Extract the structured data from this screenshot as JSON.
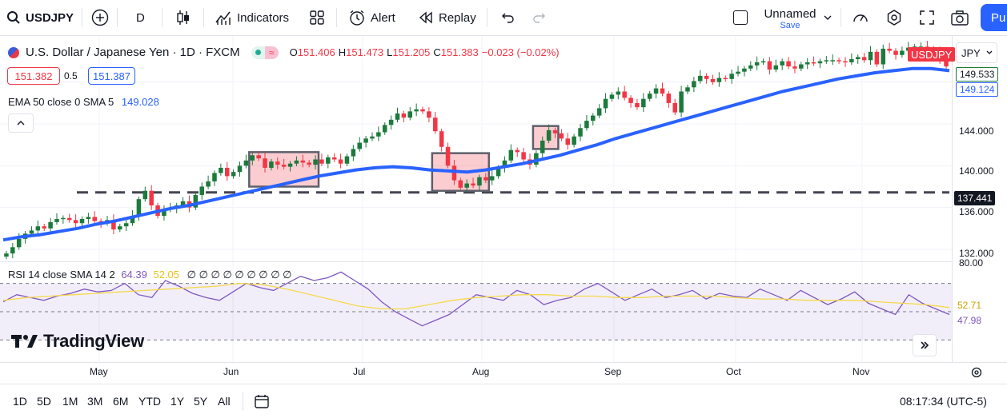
{
  "toolbar": {
    "symbol": "USDJPY",
    "interval": "D",
    "indicators_label": "Indicators",
    "alert_label": "Alert",
    "replay_label": "Replay",
    "layout_name": "Unnamed",
    "layout_status": "Save",
    "publish_label": "Pu"
  },
  "legend": {
    "title": "U.S. Dollar / Japanese Yen · 1D · FXCM",
    "o_label": "O",
    "o_value": "151.406",
    "h_label": "H",
    "h_value": "151.473",
    "l_label": "L",
    "l_value": "151.205",
    "c_label": "C",
    "c_value": "151.383",
    "change": "−0.023 (−0.02%)",
    "bid": "151.382",
    "spread": "0.5",
    "ask": "151.387",
    "ema_label": "EMA 50 close 0 SMA 5",
    "ema_value": "149.028"
  },
  "rsi_legend": {
    "label": "RSI 14 close SMA 14 2",
    "rsi_value": "64.39",
    "sma_value": "52.05",
    "empty_markers": "∅ ∅ ∅ ∅ ∅ ∅ ∅ ∅ ∅"
  },
  "price_axis": {
    "currency": "JPY",
    "ticks": [
      "144.000",
      "140.000",
      "136.000",
      "132.000"
    ],
    "symbol_tag": "USDJPY",
    "last_price": "149.533",
    "ema_tag": "149.124",
    "level_tag": "137.441"
  },
  "rsi_axis": {
    "top": "80.00",
    "sma_tag": "52.71",
    "rsi_tag": "47.98"
  },
  "time_axis": [
    "May",
    "Jun",
    "Jul",
    "Aug",
    "Sep",
    "Oct",
    "Nov"
  ],
  "watermark": "TradingView",
  "bottom": {
    "ranges": [
      "1D",
      "5D",
      "1M",
      "3M",
      "6M",
      "YTD",
      "1Y",
      "5Y",
      "All"
    ],
    "clock": "08:17:34 (UTC-5)"
  },
  "colors": {
    "up": "#1b7a3c",
    "down": "#f23645",
    "ema": "#2962ff",
    "rsi": "#7e57c2",
    "rsi_sma": "#f5d94b",
    "accent": "#2962ff"
  },
  "chart_data": {
    "type": "candlestick",
    "ylim": [
      131,
      151.5
    ],
    "horizontal_level": 137.441,
    "ohlc_close_approx": [
      131.6,
      132.2,
      133.0,
      133.5,
      133.8,
      134.2,
      134.0,
      134.6,
      134.9,
      135.0,
      134.8,
      134.5,
      134.9,
      135.1,
      134.7,
      134.5,
      134.8,
      133.9,
      134.2,
      134.5,
      135.2,
      136.8,
      137.6,
      136.2,
      135.2,
      135.8,
      135.9,
      136.2,
      136.6,
      136.0,
      137.2,
      138.0,
      138.5,
      139.3,
      139.8,
      139.0,
      139.4,
      140.0,
      140.5,
      141.0,
      140.7,
      139.8,
      140.4,
      140.1,
      139.9,
      140.2,
      140.5,
      140.3,
      140.1,
      140.6,
      140.2,
      140.8,
      140.6,
      140.2,
      140.9,
      141.6,
      142.2,
      142.6,
      142.8,
      143.2,
      143.9,
      144.4,
      145.0,
      144.6,
      145.2,
      145.4,
      145.2,
      144.6,
      143.3,
      141.8,
      140.0,
      138.6,
      137.9,
      138.3,
      138.1,
      138.9,
      138.6,
      139.0,
      139.8,
      140.5,
      141.5,
      141.3,
      140.6,
      140.1,
      141.2,
      142.4,
      143.4,
      143.1,
      142.6,
      142.0,
      142.8,
      143.6,
      144.3,
      144.8,
      145.5,
      146.4,
      146.8,
      147.1,
      146.5,
      146.0,
      145.6,
      146.4,
      146.9,
      147.4,
      146.9,
      146.0,
      145.1,
      147.1,
      147.5,
      148.1,
      148.6,
      148.3,
      148.0,
      148.4,
      148.3,
      148.8,
      149.0,
      149.3,
      149.6,
      149.9,
      150.0,
      149.2,
      149.6,
      150.0,
      149.5,
      149.3,
      149.7,
      149.9,
      149.8,
      150.0,
      150.1,
      150.1,
      150.0,
      149.9,
      150.2,
      150.4,
      150.1,
      150.9,
      149.7,
      151.2,
      151.0,
      150.6,
      151.0,
      151.3,
      151.4,
      151.4,
      151.2,
      151.0,
      150.0,
      149.5
    ],
    "ema50_approx": [
      132.9,
      133.2,
      133.4,
      133.7,
      134.0,
      134.4,
      134.7,
      135.1,
      135.5,
      135.9,
      136.2,
      136.6,
      137.0,
      137.4,
      137.8,
      138.2,
      138.6,
      139.0,
      139.3,
      139.6,
      139.8,
      139.9,
      139.8,
      139.6,
      139.5,
      139.4,
      139.6,
      139.9,
      140.2,
      140.6,
      141.0,
      141.5,
      142.0,
      142.6,
      143.1,
      143.6,
      144.1,
      144.6,
      145.1,
      145.6,
      146.1,
      146.6,
      147.1,
      147.5,
      147.9,
      148.3,
      148.6,
      148.9,
      149.1,
      149.3,
      149.3,
      149.1
    ],
    "rsi_approx": [
      57,
      62,
      60,
      58,
      61,
      63,
      66,
      64,
      65,
      70,
      62,
      60,
      72,
      68,
      63,
      60,
      58,
      64,
      70,
      67,
      65,
      70,
      75,
      72,
      74,
      78,
      72,
      66,
      57,
      50,
      45,
      40,
      44,
      48,
      55,
      62,
      60,
      58,
      65,
      62,
      55,
      58,
      60,
      66,
      70,
      64,
      58,
      62,
      66,
      60,
      62,
      65,
      59,
      63,
      61,
      60,
      66,
      62,
      58,
      65,
      60,
      55,
      59,
      64,
      56,
      52,
      48,
      62,
      56,
      52,
      48
    ],
    "rsi_sma_approx": [
      58,
      60,
      61,
      62,
      63,
      64,
      65,
      66,
      67,
      68,
      70,
      69,
      66,
      62,
      58,
      54,
      52,
      52,
      55,
      58,
      60,
      61,
      62,
      62,
      61,
      61,
      60,
      60,
      61,
      61,
      61,
      60,
      59,
      59,
      58,
      58,
      58,
      57,
      56,
      55,
      53
    ],
    "rsi_levels": [
      70,
      50,
      30
    ]
  }
}
